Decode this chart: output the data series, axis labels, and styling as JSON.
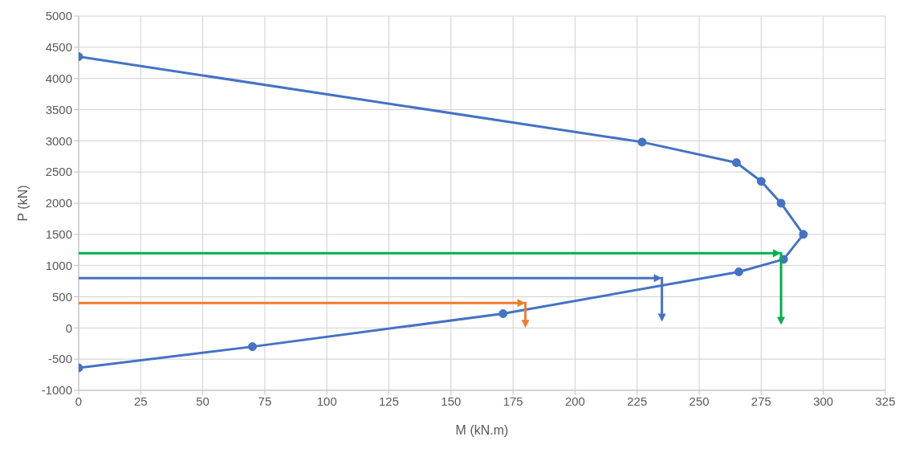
{
  "chart_data": {
    "type": "line",
    "xlabel": "M (kN.m)",
    "ylabel": "P (kN)",
    "xlim": [
      0,
      325
    ],
    "xticks": [
      0,
      25,
      50,
      75,
      100,
      125,
      150,
      175,
      200,
      225,
      250,
      275,
      300,
      325
    ],
    "ylim": [
      -1000,
      5000
    ],
    "yticks": [
      -1000,
      -500,
      0,
      500,
      1000,
      1500,
      2000,
      2500,
      3000,
      3500,
      4000,
      4500,
      5000
    ],
    "grid": true,
    "series": [
      {
        "color": "#4472c4",
        "marker": "circle",
        "x": [
          0,
          227,
          265,
          275,
          283,
          292,
          284,
          266,
          171,
          70,
          0
        ],
        "values": [
          4350,
          2980,
          2650,
          2350,
          2000,
          1500,
          1100,
          900,
          230,
          -300,
          -640
        ]
      }
    ]
  }
}
